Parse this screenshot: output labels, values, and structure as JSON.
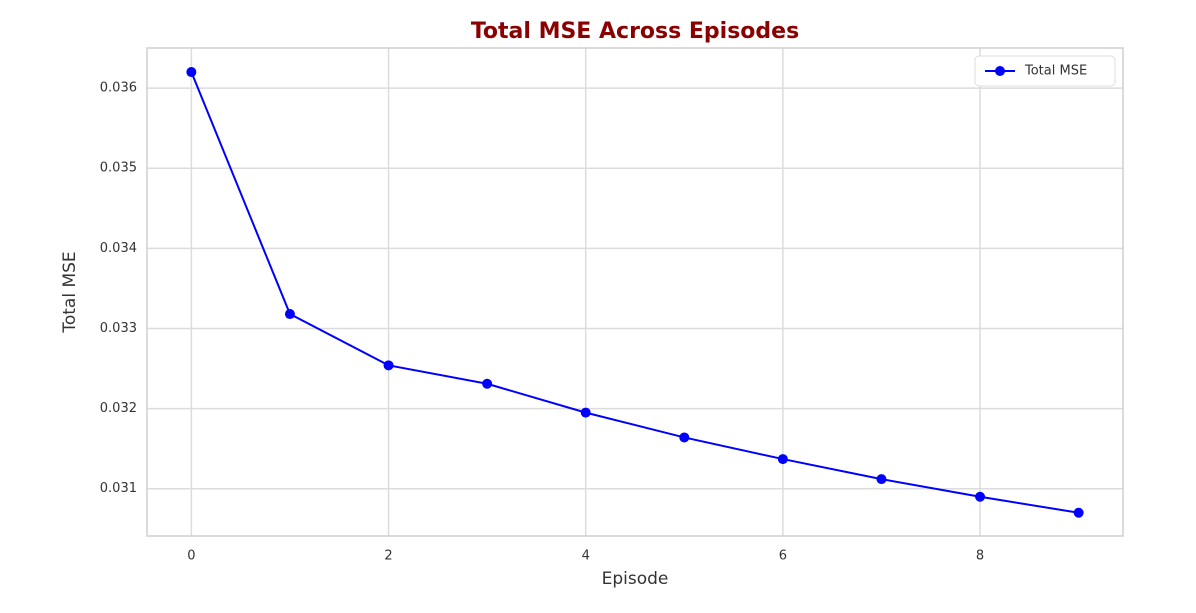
{
  "chart_data": {
    "type": "line",
    "title": "Total MSE Across Episodes",
    "x_label": "Episode",
    "y_label": "Total MSE",
    "x": [
      0,
      1,
      2,
      3,
      4,
      5,
      6,
      7,
      8,
      9
    ],
    "series": [
      {
        "name": "Total MSE",
        "color": "#0000ff",
        "values": [
          0.0362,
          0.03318,
          0.03254,
          0.03231,
          0.03195,
          0.03164,
          0.03137,
          0.03112,
          0.0309,
          0.0307
        ]
      }
    ],
    "xlim": [
      -0.45,
      9.45
    ],
    "xticks": [
      0,
      2,
      4,
      6,
      8
    ],
    "ylim": [
      0.03041,
      0.0365
    ],
    "yticks": [
      0.031,
      0.032,
      0.033,
      0.034,
      0.035,
      0.036
    ],
    "grid": true,
    "legend": "upper right",
    "title_color": "#8b0000"
  }
}
